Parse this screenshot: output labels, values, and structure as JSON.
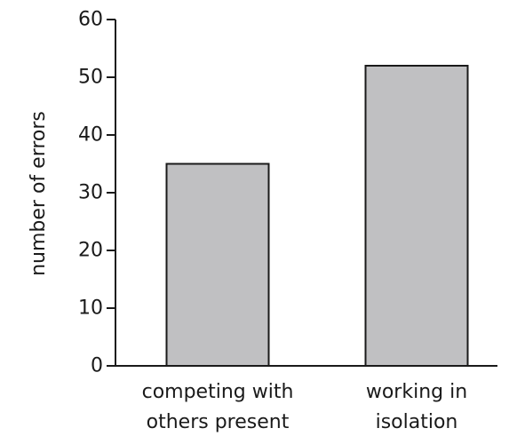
{
  "chart_data": {
    "type": "bar",
    "title": "",
    "xlabel": "",
    "ylabel": "number of errors",
    "ylim": [
      0,
      60
    ],
    "yticks": [
      0,
      10,
      20,
      30,
      40,
      50,
      60
    ],
    "categories": [
      [
        "competing with",
        "others present"
      ],
      [
        "working in",
        "isolation"
      ]
    ],
    "values": [
      35,
      52
    ],
    "bar_color": "#c0c0c2",
    "bar_edge_color": "#1a1a1a",
    "axis_color": "#1a1a1a",
    "grid": false,
    "legend": "none"
  }
}
